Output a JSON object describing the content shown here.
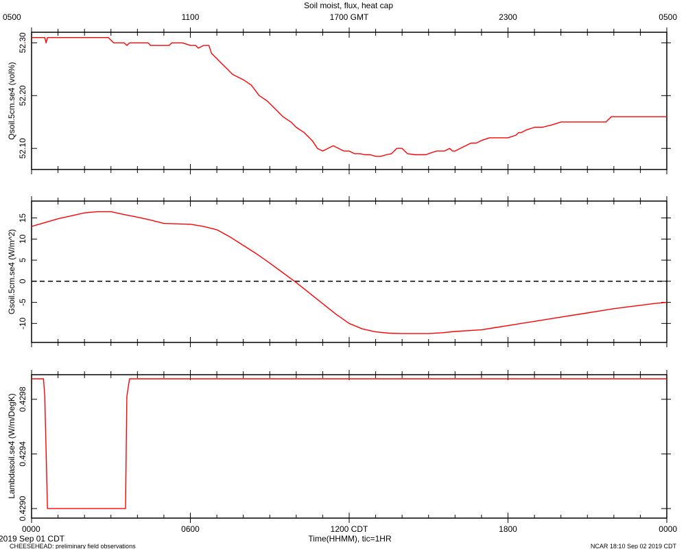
{
  "page": {
    "title": "Soil moist, flux, heat cap",
    "footer_left_1": "2019 Sep 01 CDT",
    "footer_left_2": "CHEESEHEAD: preliminary field observations",
    "footer_right": "NCAR 18:10 Sep 02 2019 CDT",
    "bottom_axis_title": "Time(HHMM), tic=1HR"
  },
  "colors": {
    "series": "#ff0000",
    "axis": "#000000"
  },
  "chart_data": [
    {
      "type": "line",
      "name": "panel-qsoil",
      "title": "Soil moist, flux, heat cap",
      "ylabel": "Qsoil.5cm.se4 (vol%)",
      "xlabel": "",
      "xlim": [
        0,
        24
      ],
      "ylim": [
        52.06,
        52.32
      ],
      "yticks": [
        52.1,
        52.2,
        52.3
      ],
      "yticks_labels": [
        "52.10",
        "52.20",
        "52.30"
      ],
      "top_ticks": [
        0,
        6,
        12,
        18,
        24
      ],
      "top_tick_labels": [
        "0500",
        "1100",
        "1700 GMT",
        "2300",
        "0500"
      ],
      "x": [
        0,
        0.2,
        0.5,
        0.55,
        0.6,
        0.8,
        1.0,
        1.5,
        2.0,
        2.3,
        2.6,
        2.9,
        3.1,
        3.3,
        3.5,
        3.6,
        3.7,
        3.8,
        4.0,
        4.4,
        4.5,
        4.7,
        5.0,
        5.2,
        5.3,
        5.4,
        5.7,
        6.0,
        6.2,
        6.3,
        6.5,
        6.7,
        6.8,
        7.0,
        7.2,
        7.4,
        7.6,
        8.0,
        8.3,
        8.6,
        8.9,
        9.2,
        9.5,
        9.8,
        10.0,
        10.3,
        10.6,
        10.8,
        11.0,
        11.2,
        11.4,
        11.6,
        11.8,
        12.0,
        12.2,
        12.4,
        12.6,
        12.8,
        13.0,
        13.2,
        13.4,
        13.6,
        13.7,
        13.8,
        14.0,
        14.1,
        14.2,
        14.5,
        14.9,
        15.0,
        15.3,
        15.6,
        15.8,
        15.9,
        16.0,
        16.2,
        16.4,
        16.6,
        16.8,
        17.0,
        17.3,
        17.6,
        18.0,
        18.3,
        18.4,
        18.5,
        18.7,
        19.0,
        19.3,
        19.7,
        20.0,
        20.1,
        20.3,
        20.6,
        21.0,
        21.6,
        21.7,
        21.9,
        22.0,
        22.2,
        22.4,
        24.0
      ],
      "y": [
        52.31,
        52.31,
        52.31,
        52.3,
        52.31,
        52.31,
        52.31,
        52.31,
        52.31,
        52.31,
        52.31,
        52.31,
        52.3,
        52.3,
        52.3,
        52.295,
        52.3,
        52.3,
        52.3,
        52.3,
        52.295,
        52.295,
        52.295,
        52.295,
        52.3,
        52.3,
        52.3,
        52.295,
        52.295,
        52.29,
        52.295,
        52.295,
        52.28,
        52.27,
        52.26,
        52.25,
        52.24,
        52.23,
        52.22,
        52.2,
        52.19,
        52.175,
        52.16,
        52.15,
        52.14,
        52.13,
        52.115,
        52.1,
        52.095,
        52.1,
        52.105,
        52.1,
        52.095,
        52.095,
        52.09,
        52.09,
        52.088,
        52.088,
        52.085,
        52.085,
        52.088,
        52.09,
        52.095,
        52.1,
        52.1,
        52.095,
        52.09,
        52.088,
        52.088,
        52.09,
        52.095,
        52.095,
        52.1,
        52.095,
        52.095,
        52.1,
        52.105,
        52.11,
        52.11,
        52.115,
        52.12,
        52.12,
        52.12,
        52.125,
        52.13,
        52.13,
        52.135,
        52.14,
        52.14,
        52.145,
        52.15,
        52.15,
        52.15,
        52.15,
        52.15,
        52.15,
        52.15,
        52.16,
        52.16,
        52.16,
        52.16,
        52.16
      ]
    },
    {
      "type": "line",
      "name": "panel-gsoil",
      "ylabel": "Gsoil.5cm.se4 (W/m^2)",
      "xlabel": "",
      "xlim": [
        0,
        24
      ],
      "ylim": [
        -14.5,
        19
      ],
      "yticks": [
        -10,
        -5,
        0,
        5,
        10,
        15
      ],
      "yticks_labels": [
        "-10",
        "-5",
        "0",
        "5",
        "10",
        "15"
      ],
      "zero_line": true,
      "x": [
        0,
        1,
        2,
        2.5,
        3,
        3.5,
        4,
        4.5,
        5,
        6,
        6.5,
        7,
        7.5,
        8,
        8.5,
        9,
        9.5,
        10,
        10.5,
        11,
        11.5,
        12,
        12.5,
        13,
        13.5,
        14,
        14.5,
        15,
        15.5,
        16,
        17,
        17.5,
        18,
        18.5,
        19,
        19.5,
        20,
        20.5,
        21,
        21.5,
        22,
        22.5,
        23,
        23.5,
        24
      ],
      "y": [
        13,
        14.8,
        16.2,
        16.5,
        16.5,
        15.8,
        15.2,
        14.5,
        13.7,
        13.5,
        13.0,
        12.2,
        10.5,
        8.5,
        6.5,
        4.3,
        2.0,
        -0.3,
        -2.8,
        -5.3,
        -7.8,
        -10.0,
        -11.3,
        -12.0,
        -12.3,
        -12.4,
        -12.4,
        -12.4,
        -12.2,
        -11.9,
        -11.5,
        -11.0,
        -10.5,
        -10.0,
        -9.5,
        -9.0,
        -8.5,
        -8.0,
        -7.5,
        -7.0,
        -6.5,
        -6.1,
        -5.7,
        -5.3,
        -5.0
      ]
    },
    {
      "type": "line",
      "name": "panel-lambda",
      "ylabel": "Lambdasoil.se4 (W/m/DegK)",
      "xlabel": "Time(HHMM), tic=1HR",
      "xlim": [
        0,
        24
      ],
      "ylim": [
        0.42893,
        0.42998
      ],
      "yticks": [
        0.429,
        0.4294,
        0.4298
      ],
      "yticks_labels": [
        "0.4290",
        "0.4294",
        "0.4298"
      ],
      "bottom_ticks": [
        0,
        6,
        12,
        18,
        24
      ],
      "bottom_tick_labels": [
        "0000",
        "0600",
        "1200 CDT",
        "1800",
        "0000"
      ],
      "x": [
        0,
        0.45,
        0.5,
        0.6,
        0.65,
        3.5,
        3.55,
        3.6,
        3.7,
        24
      ],
      "y": [
        0.42995,
        0.42995,
        0.42982,
        0.429,
        0.429,
        0.429,
        0.429,
        0.42982,
        0.42995,
        0.42995
      ]
    }
  ]
}
